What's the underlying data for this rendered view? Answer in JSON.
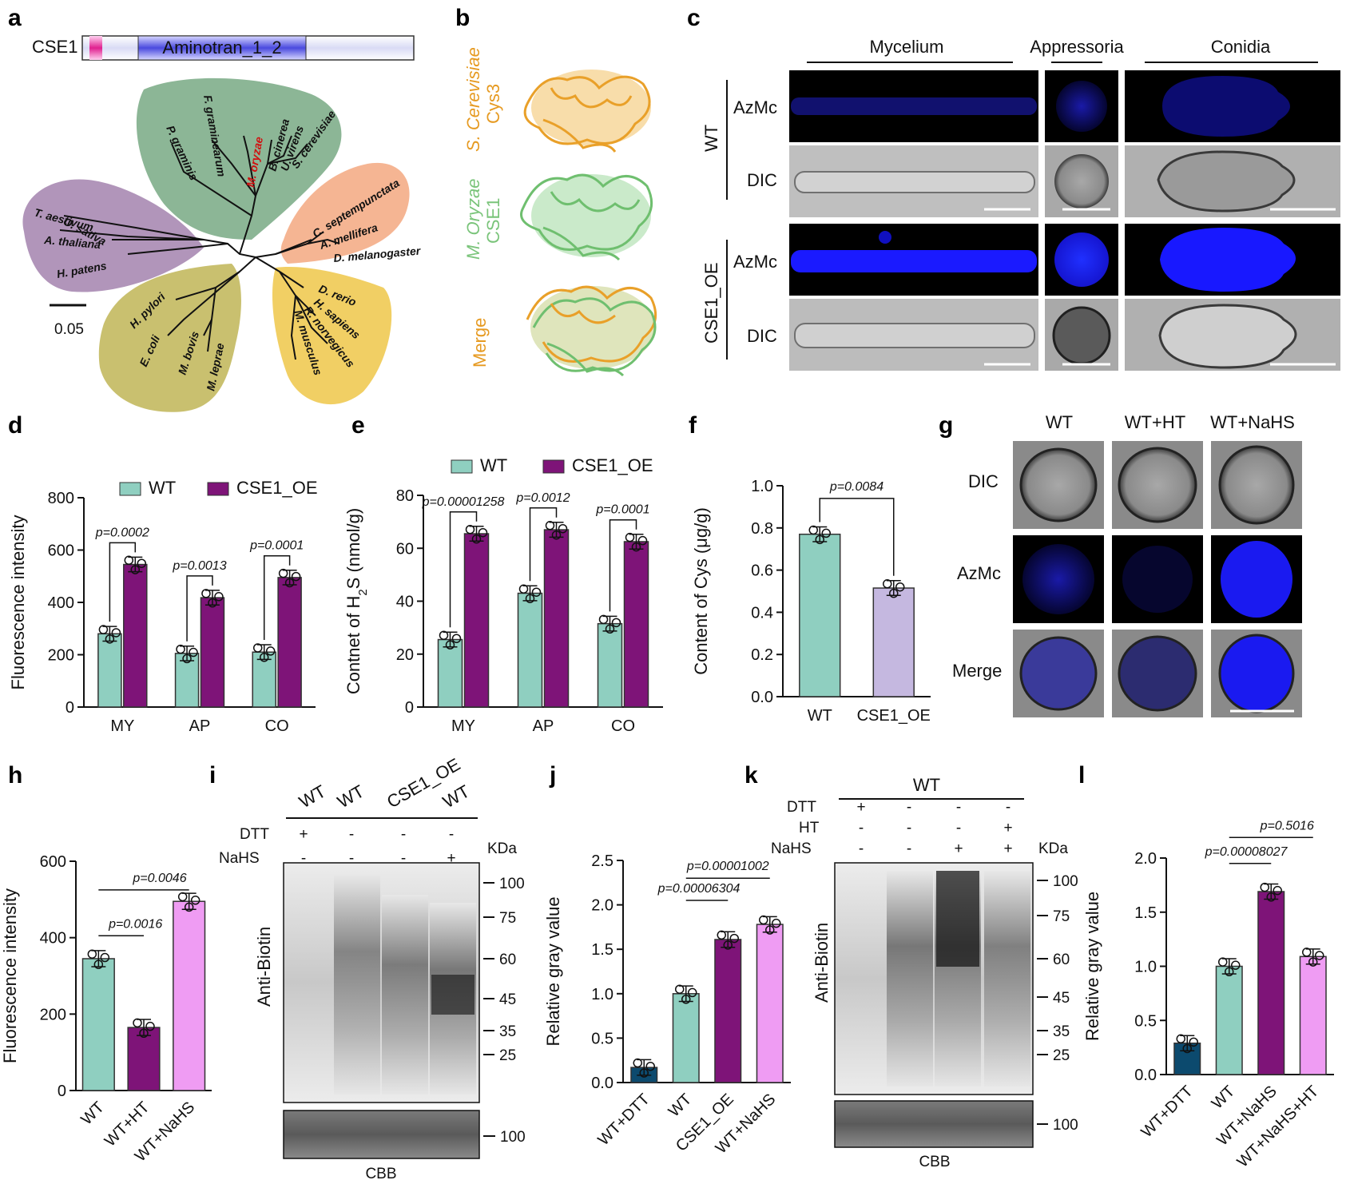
{
  "labels": {
    "a": "a",
    "b": "b",
    "c": "c",
    "d": "d",
    "e": "e",
    "f": "f",
    "g": "g",
    "h": "h",
    "i": "i",
    "j": "j",
    "k": "k",
    "l": "l"
  },
  "colors": {
    "wt": "#8fcfc0",
    "oe": "#7e1478",
    "lilac": "#c5b8e0",
    "pink": "#ef9cf3",
    "navy": "#0c4a6e",
    "orange": "#e9a029",
    "green": "#8fcf8f",
    "blue": "#1010ff"
  },
  "panel_a": {
    "gene": "CSE1",
    "domain": "Aminotran_1_2",
    "scale": "0.05",
    "taxa": [
      "O. sativa",
      "T. aestivum",
      "A. thaliana",
      "H. patens",
      "P. graminis",
      "F. graminearum",
      "M. oryzae",
      "B. cinerea",
      "U. virens",
      "S. cerevisiae",
      "C. septempunctata",
      "A. mellifera",
      "D. melanogaster",
      "D. rerio",
      "H. sapiens",
      "R. norvegicus",
      "M. musculus",
      "H. pylori",
      "E. coli",
      "M. bovis",
      "M. leprae"
    ]
  },
  "panel_b": {
    "top": "S. Cerevisiae",
    "top2": "Cys3",
    "mid": "M. Oryzae",
    "mid2": "CSE1",
    "bot": "Merge"
  },
  "panel_c": {
    "cols": [
      "Mycelium",
      "Appressoria",
      "Conidia"
    ],
    "groups": [
      "WT",
      "CSE1_OE"
    ],
    "rows": [
      "AzMc",
      "DIC",
      "AzMc",
      "DIC"
    ]
  },
  "panel_g": {
    "cols": [
      "WT",
      "WT+HT",
      "WT+NaHS"
    ],
    "rows": [
      "DIC",
      "AzMc",
      "Merge"
    ]
  },
  "panel_i": {
    "lanes": [
      "WT",
      "WT",
      "CSE1_OE",
      "WT"
    ],
    "rows": [
      {
        "name": "DTT",
        "vals": [
          "+",
          "-",
          "-",
          "-"
        ]
      },
      {
        "name": "NaHS",
        "vals": [
          "-",
          "-",
          "-",
          "+"
        ]
      }
    ],
    "kda": "KDa",
    "markers": [
      "100",
      "75",
      "60",
      "45",
      "35",
      "25"
    ],
    "cbb": "CBB",
    "cbb_marker": "100",
    "ylabel": "Anti-Biotin"
  },
  "panel_k": {
    "group": "WT",
    "rows": [
      {
        "name": "DTT",
        "vals": [
          "+",
          "-",
          "-",
          "-"
        ]
      },
      {
        "name": "HT",
        "vals": [
          "-",
          "-",
          "-",
          "+"
        ]
      },
      {
        "name": "NaHS",
        "vals": [
          "-",
          "-",
          "+",
          "+"
        ]
      }
    ],
    "kda": "KDa",
    "markers": [
      "100",
      "75",
      "60",
      "45",
      "35",
      "25"
    ],
    "cbb": "CBB",
    "cbb_marker": "100",
    "ylabel": "Anti-Biotin"
  },
  "chart_data": [
    {
      "id": "d",
      "type": "bar",
      "categories": [
        "MY",
        "AP",
        "CO"
      ],
      "series": [
        {
          "name": "WT",
          "values": [
            280,
            205,
            210
          ]
        },
        {
          "name": "CSE1_OE",
          "values": [
            545,
            418,
            495
          ]
        }
      ],
      "ylabel": "Fluorescence intensity",
      "ylim": [
        0,
        800
      ],
      "yticks": [
        "0",
        "200",
        "400",
        "600",
        "800"
      ],
      "pvalues": [
        "p=0.0002",
        "p=0.0013",
        "p=0.0001"
      ],
      "legend": "top"
    },
    {
      "id": "e",
      "type": "bar",
      "categories": [
        "MY",
        "AP",
        "CO"
      ],
      "series": [
        {
          "name": "WT",
          "values": [
            25.5,
            43,
            31.5
          ]
        },
        {
          "name": "CSE1_OE",
          "values": [
            65.5,
            67,
            62.5
          ]
        }
      ],
      "ylabel": "Contnet of H2S (nmol/g)",
      "ylabel_pre": "Contnet of H",
      "ylabel_sub": "2",
      "ylabel_post": "S (nmol/g)",
      "ylim": [
        0,
        80
      ],
      "yticks": [
        "0",
        "20",
        "40",
        "60",
        "80"
      ],
      "pvalues": [
        "p=0.00001258",
        "p=0.0012",
        "p=0.0001"
      ],
      "legend": "top"
    },
    {
      "id": "f",
      "type": "bar",
      "categories": [
        "WT",
        "CSE1_OE"
      ],
      "values": [
        0.77,
        0.515
      ],
      "ylabel": "Content of Cys (μg/g)",
      "ylim": [
        0,
        1.0
      ],
      "yticks": [
        "0.0",
        "0.2",
        "0.4",
        "0.6",
        "0.8",
        "1.0"
      ],
      "pvalues": [
        "p=0.0084"
      ]
    },
    {
      "id": "h",
      "type": "bar",
      "categories": [
        "WT",
        "WT+HT",
        "WT+NaHS"
      ],
      "values": [
        345,
        165,
        495
      ],
      "ylabel": "Fluorescence intensity",
      "ylim": [
        0,
        600
      ],
      "yticks": [
        "0",
        "200",
        "400",
        "600"
      ],
      "pvalues": [
        "p=0.0016",
        "p=0.0046"
      ]
    },
    {
      "id": "j",
      "type": "bar",
      "categories": [
        "WT+DTT",
        "WT",
        "CSE1_OE",
        "WT+NaHS"
      ],
      "values": [
        0.17,
        1.0,
        1.61,
        1.78
      ],
      "ylabel": "Relative gray value",
      "ylim": [
        0,
        2.5
      ],
      "yticks": [
        "0.0",
        "0.5",
        "1.0",
        "1.5",
        "2.0",
        "2.5"
      ],
      "pvalues": [
        "p=0.00006304",
        "p=0.00001002"
      ]
    },
    {
      "id": "l",
      "type": "bar",
      "categories": [
        "WT+DTT",
        "WT",
        "WT+NaHS",
        "WT+NaHS+HT"
      ],
      "values": [
        0.29,
        1.0,
        1.69,
        1.09
      ],
      "ylabel": "Relative gray value",
      "ylim": [
        0,
        2.0
      ],
      "yticks": [
        "0.0",
        "0.5",
        "1.0",
        "1.5",
        "2.0"
      ],
      "pvalues": [
        "p=0.00008027",
        "p=0.5016"
      ]
    }
  ]
}
